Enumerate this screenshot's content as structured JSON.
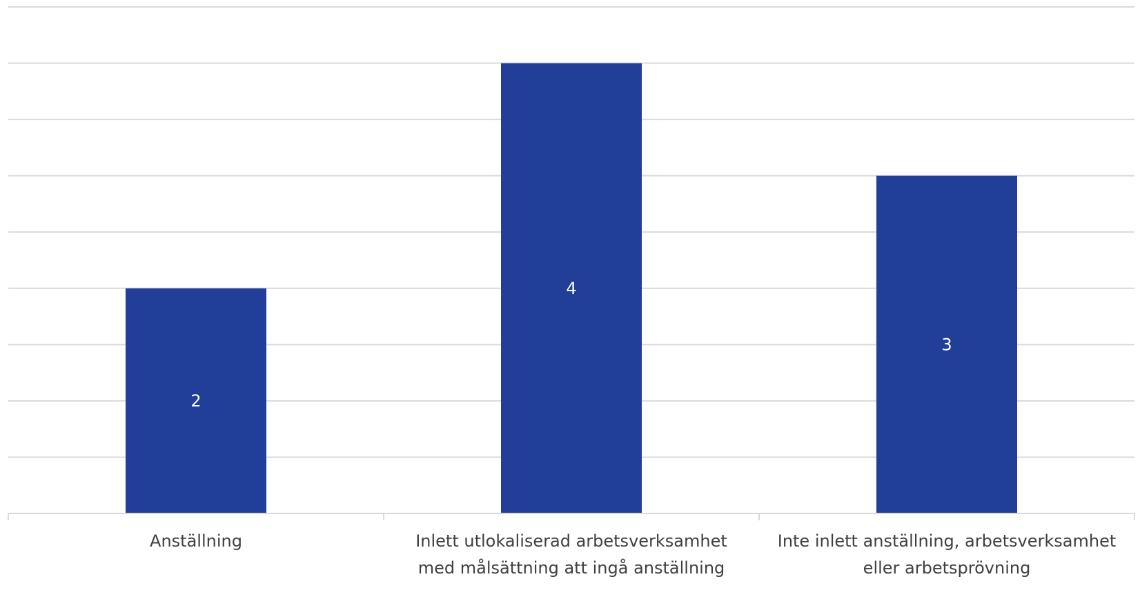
{
  "chart_data": {
    "type": "bar",
    "categories": [
      [
        "Anställning"
      ],
      [
        "Inlett utlokaliserad arbetsverksamhet",
        "med målsättning att ingå anställning"
      ],
      [
        "Inte inlett anställning, arbetsverksamhet",
        "eller arbetsprövning"
      ]
    ],
    "values": [
      2,
      4,
      3
    ],
    "data_labels": [
      "2",
      "4",
      "3"
    ],
    "ylim": [
      0,
      4.5
    ],
    "grid": true,
    "colors": {
      "bar": "#213F99",
      "grid": "#D9D9D9",
      "axis": "#D9D9D9",
      "text": "#404040",
      "label": "#FFFFFF"
    }
  }
}
